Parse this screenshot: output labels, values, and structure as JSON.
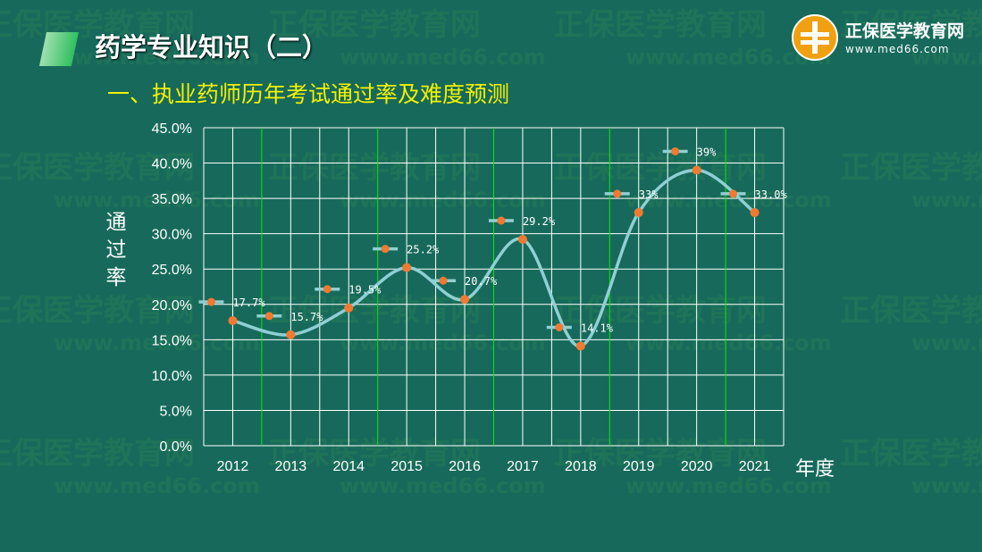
{
  "header": {
    "title": "药学专业知识（二）",
    "subtitle": "一、执业药师历年考试通过率及难度预测"
  },
  "logo": {
    "name": "正保医学教育网",
    "url": "www.med66.com",
    "watermark": "正保医学教育网 www.med66.com"
  },
  "colors": {
    "background": "#176a5b",
    "title": "#ffffff",
    "subtitle": "#f4f000",
    "line": "#8fd0d4",
    "marker": "#f07a30",
    "grid": "#ffffff",
    "grid_accent": "#00ee00"
  },
  "chart_data": {
    "type": "line",
    "title": "",
    "xlabel": "年度",
    "ylabel": "通过率",
    "categories": [
      "2012",
      "2013",
      "2014",
      "2015",
      "2016",
      "2017",
      "2018",
      "2019",
      "2020",
      "2021"
    ],
    "values": [
      17.7,
      15.7,
      19.5,
      25.2,
      20.7,
      29.2,
      14.1,
      33,
      39,
      33.0
    ],
    "data_labels": [
      "17.7%",
      "15.7%",
      "19.5%",
      "25.2%",
      "20.7%",
      "29.2%",
      "14.1%",
      "33%",
      "39%",
      "33.0%"
    ],
    "ylim": [
      0,
      45
    ],
    "yticks": [
      "0.0%",
      "5.0%",
      "10.0%",
      "15.0%",
      "20.0%",
      "25.0%",
      "30.0%",
      "35.0%",
      "40.0%",
      "45.0%"
    ],
    "smooth": true,
    "grid": true
  }
}
